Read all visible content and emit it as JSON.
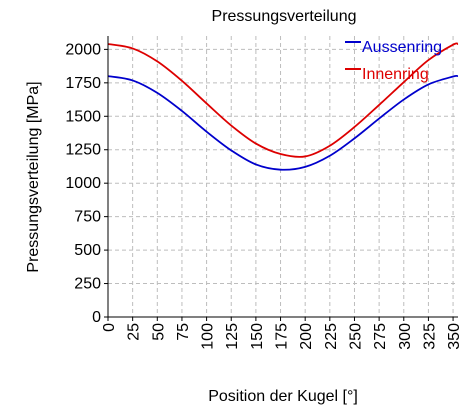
{
  "chart_data": {
    "type": "line",
    "title": "Pressungsverteilung",
    "xlabel": "Position der Kugel [°]",
    "ylabel": "Pressungsverteilung [MPa]",
    "xlim": [
      0,
      355
    ],
    "ylim": [
      0,
      2100
    ],
    "xticks": [
      0,
      25,
      50,
      75,
      100,
      125,
      150,
      175,
      200,
      225,
      250,
      275,
      300,
      325,
      350
    ],
    "yticks": [
      0,
      250,
      500,
      750,
      1000,
      1250,
      1500,
      1750,
      2000
    ],
    "grid": true,
    "legend_position": "top-right",
    "x": [
      0,
      25,
      50,
      75,
      100,
      125,
      150,
      175,
      200,
      225,
      250,
      275,
      300,
      325,
      350,
      355
    ],
    "series": [
      {
        "name": "Aussenring",
        "color": "#0000cc",
        "values": [
          1800,
          1768,
          1675,
          1540,
          1385,
          1245,
          1140,
          1101,
          1122,
          1205,
          1335,
          1483,
          1625,
          1738,
          1797,
          1800
        ]
      },
      {
        "name": "Innenring",
        "color": "#dd0000",
        "values": [
          2040,
          2007,
          1910,
          1765,
          1596,
          1431,
          1296,
          1218,
          1200,
          1280,
          1420,
          1585,
          1755,
          1920,
          2035,
          2040
        ]
      }
    ]
  }
}
